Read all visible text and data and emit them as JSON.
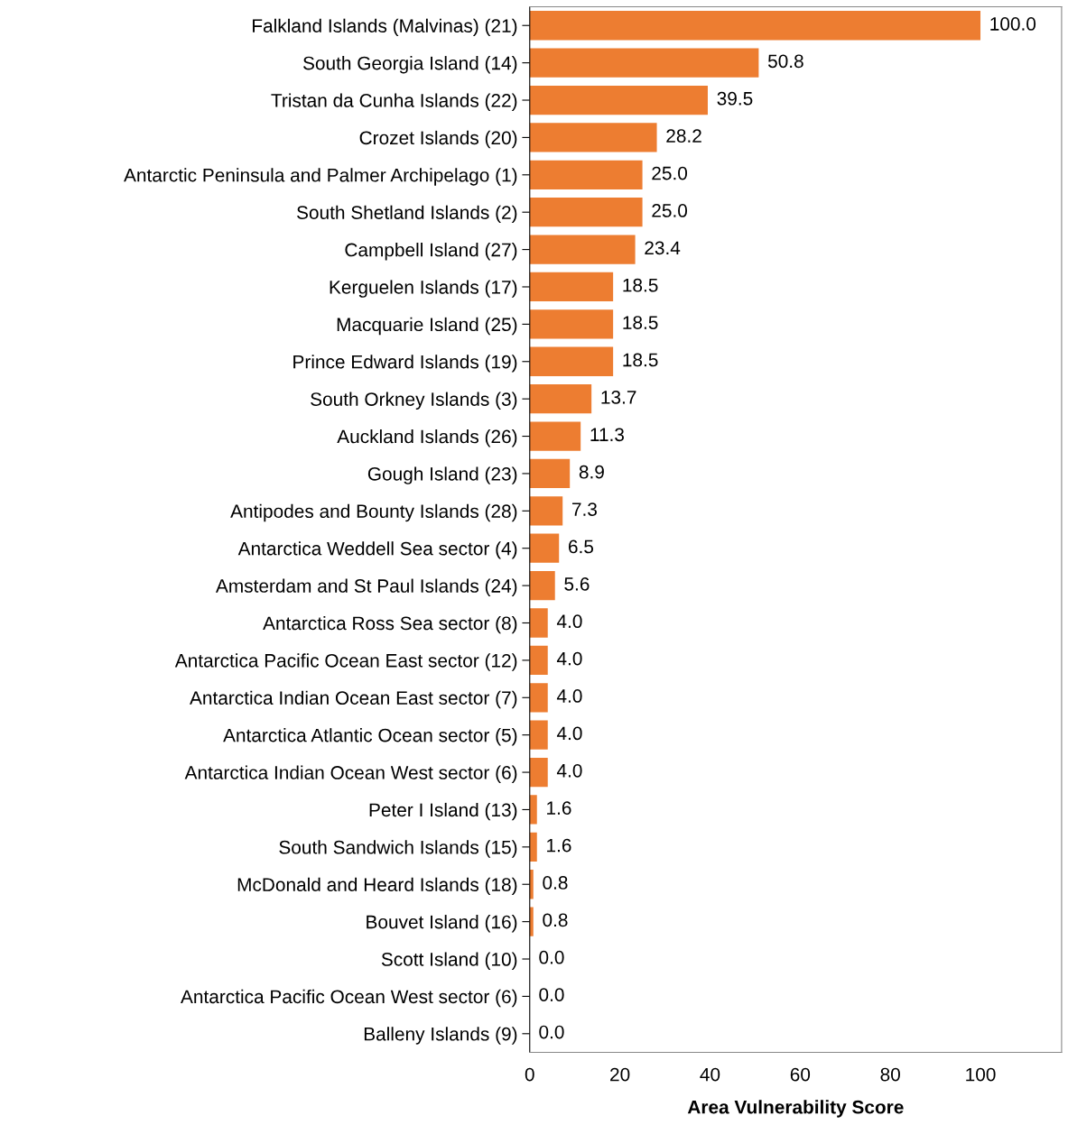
{
  "chart_data": {
    "type": "bar",
    "orientation": "horizontal",
    "xlabel": "Area Vulnerability Score",
    "categories": [
      "Falkland Islands (Malvinas) (21)",
      "South Georgia Island (14)",
      "Tristan da Cunha Islands (22)",
      "Crozet Islands (20)",
      "Antarctic Peninsula and Palmer Archipelago (1)",
      "South Shetland Islands (2)",
      "Campbell Island (27)",
      "Kerguelen Islands (17)",
      "Macquarie Island (25)",
      "Prince Edward Islands (19)",
      "South Orkney Islands (3)",
      "Auckland Islands (26)",
      "Gough Island (23)",
      "Antipodes and Bounty Islands (28)",
      "Antarctica Weddell Sea sector (4)",
      "Amsterdam and St Paul Islands (24)",
      "Antarctica Ross Sea sector (8)",
      "Antarctica Pacific Ocean East sector (12)",
      "Antarctica Indian Ocean East sector (7)",
      "Antarctica Atlantic Ocean sector (5)",
      "Antarctica Indian Ocean West sector (6)",
      "Peter I Island (13)",
      "South Sandwich Islands (15)",
      "McDonald and Heard Islands (18)",
      "Bouvet Island (16)",
      "Scott Island (10)",
      "Antarctica Pacific Ocean West sector (6)",
      "Balleny Islands (9)"
    ],
    "values": [
      100.0,
      50.8,
      39.5,
      28.2,
      25.0,
      25.0,
      23.4,
      18.5,
      18.5,
      18.5,
      13.7,
      11.3,
      8.9,
      7.3,
      6.5,
      5.6,
      4.0,
      4.0,
      4.0,
      4.0,
      4.0,
      1.6,
      1.6,
      0.8,
      0.8,
      0.0,
      0.0,
      0.0
    ],
    "value_labels": [
      "100.0",
      "50.8",
      "39.5",
      "28.2",
      "25.0",
      "25.0",
      "23.4",
      "18.5",
      "18.5",
      "18.5",
      "13.7",
      "11.3",
      "8.9",
      "7.3",
      "6.5",
      "5.6",
      "4.0",
      "4.0",
      "4.0",
      "4.0",
      "4.0",
      "1.6",
      "1.6",
      "0.8",
      "0.8",
      "0.0",
      "0.0",
      "0.0"
    ],
    "color": "#ed7d31",
    "xlim": [
      0,
      118
    ],
    "xticks": [
      0,
      20,
      40,
      60,
      80,
      100
    ],
    "grid": false
  }
}
